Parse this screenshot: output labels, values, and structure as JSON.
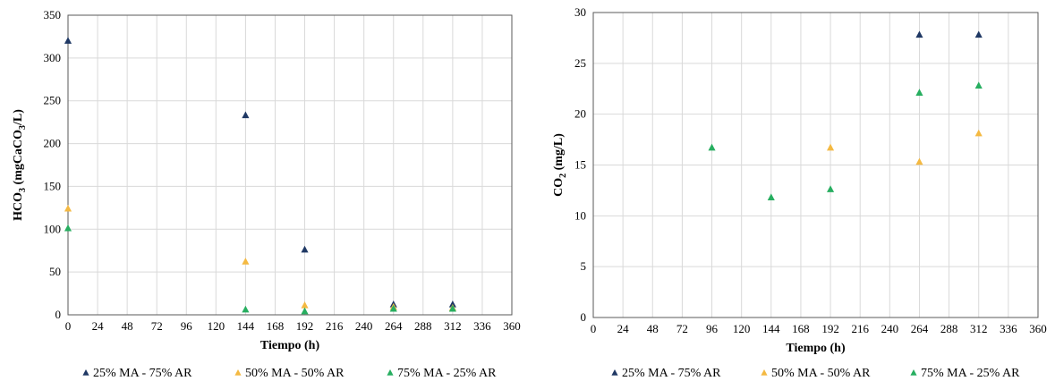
{
  "chart_data": [
    {
      "type": "scatter",
      "title": "",
      "xlabel": "Tiempo (h)",
      "ylabel": {
        "main": "HCO",
        "sub1": "3",
        "rest": " (mgCaCO",
        "sub2": "3",
        "end": "/L)"
      },
      "xlim": [
        0,
        360
      ],
      "ylim": [
        0,
        350
      ],
      "xticks": [
        "0",
        "24",
        "48",
        "72",
        "96",
        "120",
        "144",
        "168",
        "192",
        "216",
        "240",
        "264",
        "288",
        "312",
        "336",
        "360"
      ],
      "yticks": [
        "0",
        "50",
        "100",
        "150",
        "200",
        "250",
        "300",
        "350"
      ],
      "grid": true,
      "legend_position": "bottom",
      "series": [
        {
          "name": "25% MA - 75% AR",
          "color": "#1f3864",
          "points": [
            [
              0,
              320
            ],
            [
              144,
              233
            ],
            [
              192,
              76
            ],
            [
              264,
              12
            ],
            [
              312,
              12
            ]
          ]
        },
        {
          "name": "50% MA - 50% AR",
          "color": "#f4b942",
          "points": [
            [
              0,
              124
            ],
            [
              144,
              62
            ],
            [
              192,
              11
            ],
            [
              264,
              9
            ],
            [
              312,
              8
            ]
          ]
        },
        {
          "name": "75% MA - 25% AR",
          "color": "#27ae60",
          "points": [
            [
              0,
              101
            ],
            [
              144,
              6
            ],
            [
              192,
              4
            ],
            [
              264,
              7
            ],
            [
              312,
              7
            ]
          ]
        }
      ]
    },
    {
      "type": "scatter",
      "title": "",
      "xlabel": "Tiempo (h)",
      "ylabel": {
        "main": "CO",
        "sub1": "2",
        "rest": " (mg/L)",
        "sub2": "",
        "end": ""
      },
      "xlim": [
        0,
        360
      ],
      "ylim": [
        0,
        30
      ],
      "xticks": [
        "0",
        "24",
        "48",
        "72",
        "96",
        "120",
        "144",
        "168",
        "192",
        "216",
        "240",
        "264",
        "288",
        "312",
        "336",
        "360"
      ],
      "yticks": [
        "0",
        "5",
        "10",
        "15",
        "20",
        "25",
        "30"
      ],
      "grid": true,
      "legend_position": "bottom",
      "series": [
        {
          "name": "25% MA - 75% AR",
          "color": "#1f3864",
          "points": [
            [
              264,
              27.8
            ],
            [
              312,
              27.8
            ]
          ]
        },
        {
          "name": "50% MA - 50% AR",
          "color": "#f4b942",
          "points": [
            [
              192,
              16.7
            ],
            [
              264,
              15.3
            ],
            [
              312,
              18.1
            ]
          ]
        },
        {
          "name": "75% MA - 25% AR",
          "color": "#27ae60",
          "points": [
            [
              96,
              16.7
            ],
            [
              144,
              11.8
            ],
            [
              192,
              12.6
            ],
            [
              264,
              22.1
            ],
            [
              312,
              22.8
            ]
          ]
        }
      ]
    }
  ]
}
